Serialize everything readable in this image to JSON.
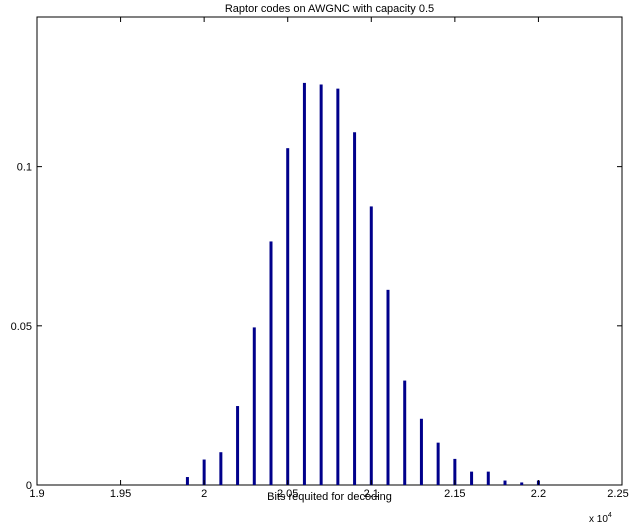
{
  "chart_data": {
    "type": "bar",
    "title": "Raptor codes on AWGNC with capacity 0.5",
    "xlabel": "Bits requited for decoding",
    "ylabel": "",
    "x_exponent_label": "x 10",
    "x_exponent_power": "4",
    "xlim": [
      1.9,
      2.25
    ],
    "ylim": [
      0,
      0.147
    ],
    "xticks": [
      "1.9",
      "1.95",
      "2",
      "2.05",
      "2.1",
      "2.15",
      "2.2",
      "2.25"
    ],
    "xtick_values": [
      1.9,
      1.95,
      2.0,
      2.05,
      2.1,
      2.15,
      2.2,
      2.25
    ],
    "yticks": [
      "0",
      "0.05",
      "0.1"
    ],
    "ytick_values": [
      0,
      0.05,
      0.1
    ],
    "x": [
      1.99,
      2.0,
      2.01,
      2.02,
      2.03,
      2.04,
      2.05,
      2.06,
      2.07,
      2.08,
      2.09,
      2.1,
      2.11,
      2.12,
      2.13,
      2.14,
      2.15,
      2.16,
      2.17,
      2.18,
      2.19,
      2.2
    ],
    "values": [
      0.0025,
      0.008,
      0.0103,
      0.0248,
      0.0495,
      0.0765,
      0.1058,
      0.1263,
      0.1258,
      0.1245,
      0.1108,
      0.0875,
      0.0613,
      0.0328,
      0.0208,
      0.0133,
      0.0082,
      0.0042,
      0.0042,
      0.0014,
      0.0008,
      0.0014
    ],
    "bar_color": "#00008b",
    "grid": false
  }
}
